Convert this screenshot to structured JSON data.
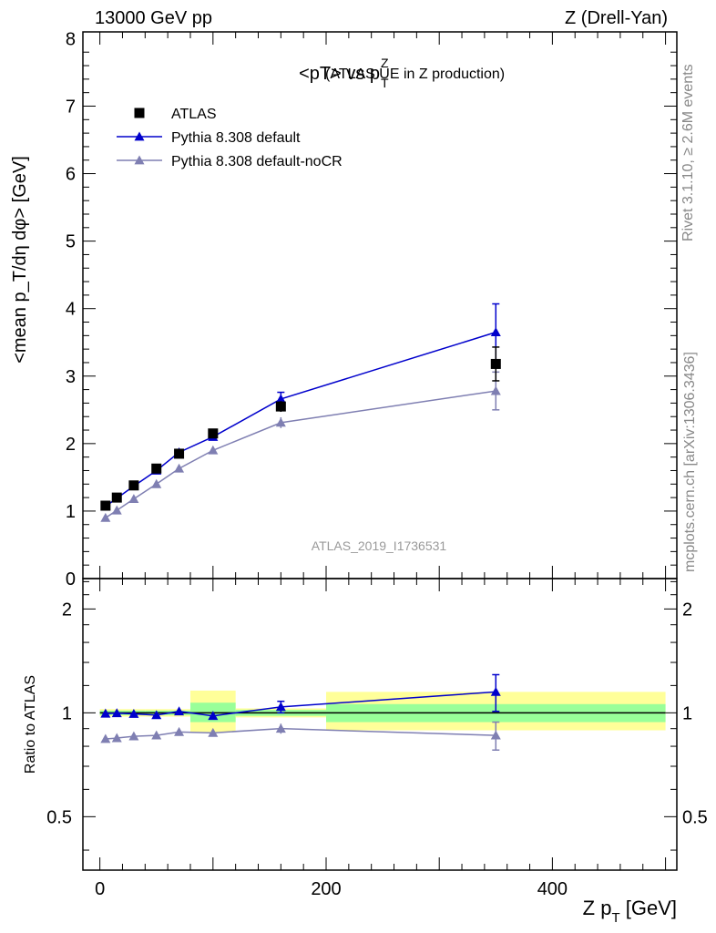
{
  "header": {
    "left": "13000 GeV pp",
    "right": "Z (Drell-Yan)"
  },
  "plot_title": {
    "main": "<pT> vs p",
    "sup": "Z",
    "sub": "T",
    "suffix": "(ATLAS UE in Z production)"
  },
  "side_labels": {
    "rivet": "Rivet 3.1.10, ≥ 2.6M events",
    "mcplots": "mcplots.cern.ch [arXiv:1306.3436]"
  },
  "analysis_id": "ATLAS_2019_I1736531",
  "colors": {
    "data": "#000000",
    "default": "#0000cc",
    "nocr": "#7f7fb2",
    "band_inner": "#99ff99",
    "band_outer": "#ffff99"
  },
  "chart_data": [
    {
      "type": "line",
      "title": "<pT> vs pT^Z (ATLAS UE in Z production)",
      "ylabel": "<mean p_T/dη dφ> [GeV]",
      "xlabel": "",
      "xlim": [
        -15,
        510
      ],
      "ylim": [
        0,
        8.1
      ],
      "yticks": [
        "0",
        "1",
        "2",
        "3",
        "4",
        "5",
        "6",
        "7",
        "8"
      ],
      "x": [
        5,
        15,
        30,
        50,
        70,
        100,
        160,
        350
      ],
      "series": [
        {
          "name": "ATLAS",
          "marker": "square",
          "values": [
            1.08,
            1.2,
            1.38,
            1.63,
            1.85,
            2.15,
            2.55,
            3.18
          ],
          "errors": [
            0.02,
            0.02,
            0.03,
            0.03,
            0.04,
            0.05,
            0.08,
            0.25
          ]
        },
        {
          "name": "Pythia 8.308 default",
          "marker": "triangle",
          "values": [
            1.07,
            1.19,
            1.37,
            1.6,
            1.87,
            2.1,
            2.66,
            3.65
          ],
          "errors": [
            0.02,
            0.02,
            0.03,
            0.04,
            0.04,
            0.05,
            0.1,
            0.42
          ]
        },
        {
          "name": "Pythia 8.308 default-noCR",
          "marker": "triangle",
          "values": [
            0.9,
            1.01,
            1.18,
            1.4,
            1.63,
            1.9,
            2.31,
            2.78
          ],
          "errors": [
            0.02,
            0.02,
            0.03,
            0.03,
            0.04,
            0.04,
            0.08,
            0.28
          ]
        }
      ],
      "legend_position": "top-left"
    },
    {
      "type": "line",
      "ylabel": "Ratio to ATLAS",
      "xlabel": "Z p_T [GeV]",
      "ylim": [
        0.35,
        2.45
      ],
      "yscale": "log",
      "yticks": [
        "0.5",
        "1",
        "2"
      ],
      "xticks": [
        "0",
        "200",
        "400"
      ],
      "bands": [
        {
          "x": [
            0,
            10
          ],
          "inner": [
            0.985,
            1.015
          ],
          "outer": [
            0.975,
            1.025
          ]
        },
        {
          "x": [
            10,
            20
          ],
          "inner": [
            0.985,
            1.015
          ],
          "outer": [
            0.975,
            1.025
          ]
        },
        {
          "x": [
            20,
            40
          ],
          "inner": [
            0.985,
            1.015
          ],
          "outer": [
            0.975,
            1.025
          ]
        },
        {
          "x": [
            40,
            60
          ],
          "inner": [
            0.985,
            1.015
          ],
          "outer": [
            0.975,
            1.025
          ]
        },
        {
          "x": [
            60,
            80
          ],
          "inner": [
            0.985,
            1.015
          ],
          "outer": [
            0.975,
            1.025
          ]
        },
        {
          "x": [
            80,
            120
          ],
          "inner": [
            0.94,
            1.07
          ],
          "outer": [
            0.88,
            1.16
          ]
        },
        {
          "x": [
            120,
            200
          ],
          "inner": [
            0.98,
            1.02
          ],
          "outer": [
            0.97,
            1.03
          ]
        },
        {
          "x": [
            200,
            500
          ],
          "inner": [
            0.94,
            1.06
          ],
          "outer": [
            0.89,
            1.15
          ]
        }
      ],
      "x": [
        5,
        15,
        30,
        50,
        70,
        100,
        160,
        350
      ],
      "series": [
        {
          "name": "Pythia 8.308 default",
          "values": [
            0.995,
            0.998,
            0.993,
            0.985,
            1.01,
            0.98,
            1.04,
            1.15
          ],
          "errors": [
            0.015,
            0.015,
            0.015,
            0.015,
            0.015,
            0.02,
            0.04,
            0.14
          ]
        },
        {
          "name": "Pythia 8.308 default-noCR",
          "values": [
            0.84,
            0.845,
            0.855,
            0.86,
            0.88,
            0.875,
            0.9,
            0.86
          ],
          "errors": [
            0.012,
            0.012,
            0.012,
            0.012,
            0.014,
            0.014,
            0.03,
            0.08
          ]
        }
      ]
    }
  ]
}
